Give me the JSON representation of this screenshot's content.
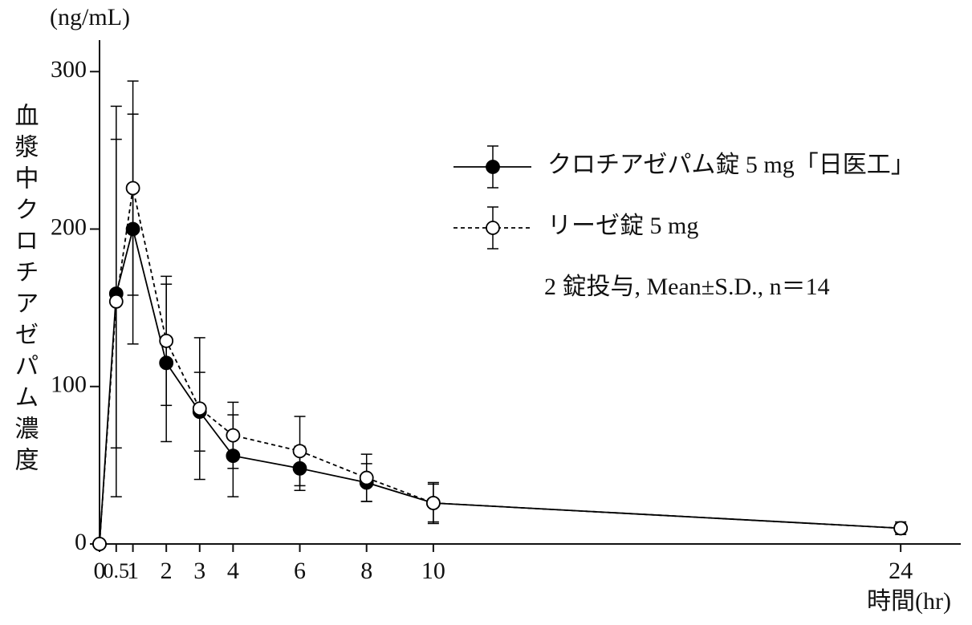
{
  "chart_data": {
    "type": "line",
    "y_unit": "(ng/mL)",
    "y_label": "血漿中クロチアゼパム濃度",
    "x_label": "時間(hr)",
    "annotation": "2 錠投与, Mean±S.D., n＝14",
    "x": [
      0,
      0.5,
      1,
      2,
      3,
      4,
      6,
      8,
      10,
      24
    ],
    "xlim": [
      0,
      25.8
    ],
    "xticks": [
      0,
      0.5,
      1,
      2,
      3,
      4,
      6,
      8,
      10,
      24
    ],
    "ylim": [
      0,
      320
    ],
    "yticks": [
      0,
      100,
      200,
      300
    ],
    "series": [
      {
        "name": "クロチアゼパム錠 5 mg「日医工」",
        "color": "#000000",
        "marker_fill": "#000000",
        "line_style": "solid",
        "values": [
          0,
          159,
          200,
          115,
          84,
          56,
          48,
          39,
          26,
          10
        ],
        "errors": [
          0,
          98,
          73,
          50,
          25,
          26,
          14,
          12,
          13,
          3
        ]
      },
      {
        "name": "リーゼ錠 5 mg",
        "color": "#000000",
        "marker_fill": "#ffffff",
        "line_style": "dashed",
        "values": [
          0,
          154,
          226,
          129,
          86,
          69,
          59,
          42,
          26,
          10
        ],
        "errors": [
          0,
          124,
          68,
          41,
          45,
          21,
          22,
          15,
          12,
          4
        ]
      }
    ]
  }
}
